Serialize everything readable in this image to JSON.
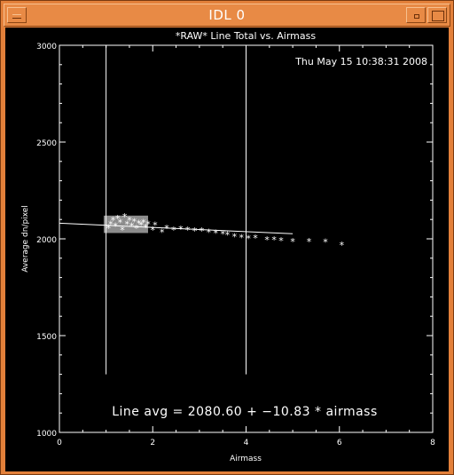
{
  "window": {
    "title": "IDL 0"
  },
  "chart_data": {
    "type": "scatter",
    "title": "*RAW* Line Total vs. Airmass",
    "timestamp": "Thu May 15 10:38:31 2008",
    "xlabel": "Airmass",
    "ylabel": "Average dn/pixel",
    "xlim": [
      0,
      8
    ],
    "ylim": [
      1000,
      3000
    ],
    "xticks": [
      "0",
      "2",
      "4",
      "6",
      "8"
    ],
    "yticks": [
      "1000",
      "1500",
      "2000",
      "2500",
      "3000"
    ],
    "annotation": "Line avg = 2080.60 + −10.83 * airmass",
    "fit": {
      "intercept": 2080.6,
      "slope": -10.83,
      "x_range": [
        0,
        5
      ]
    },
    "marker_lines": [
      1.0,
      4.0
    ],
    "marker_line_yrange": [
      1300,
      3000
    ],
    "dense_cluster": {
      "x_range": [
        0.95,
        1.9
      ],
      "y_range": [
        2030,
        2120
      ]
    },
    "points": [
      [
        1.05,
        2060
      ],
      [
        1.1,
        2080
      ],
      [
        1.15,
        2100
      ],
      [
        1.2,
        2070
      ],
      [
        1.25,
        2110
      ],
      [
        1.3,
        2090
      ],
      [
        1.35,
        2050
      ],
      [
        1.4,
        2120
      ],
      [
        1.45,
        2080
      ],
      [
        1.5,
        2100
      ],
      [
        1.55,
        2070
      ],
      [
        1.6,
        2095
      ],
      [
        1.65,
        2060
      ],
      [
        1.7,
        2085
      ],
      [
        1.75,
        2075
      ],
      [
        1.8,
        2090
      ],
      [
        1.85,
        2065
      ],
      [
        1.9,
        2080
      ],
      [
        2.0,
        2050
      ],
      [
        2.05,
        2075
      ],
      [
        2.2,
        2040
      ],
      [
        2.3,
        2060
      ],
      [
        2.45,
        2050
      ],
      [
        2.6,
        2055
      ],
      [
        2.75,
        2050
      ],
      [
        2.9,
        2045
      ],
      [
        3.05,
        2045
      ],
      [
        3.2,
        2040
      ],
      [
        3.35,
        2035
      ],
      [
        3.5,
        2030
      ],
      [
        3.6,
        2025
      ],
      [
        3.75,
        2015
      ],
      [
        3.9,
        2012
      ],
      [
        4.05,
        2008
      ],
      [
        4.2,
        2010
      ],
      [
        4.45,
        2000
      ],
      [
        4.6,
        2000
      ],
      [
        4.75,
        1995
      ],
      [
        5.0,
        1990
      ],
      [
        5.35,
        1990
      ],
      [
        5.7,
        1988
      ],
      [
        6.05,
        1972
      ]
    ]
  }
}
